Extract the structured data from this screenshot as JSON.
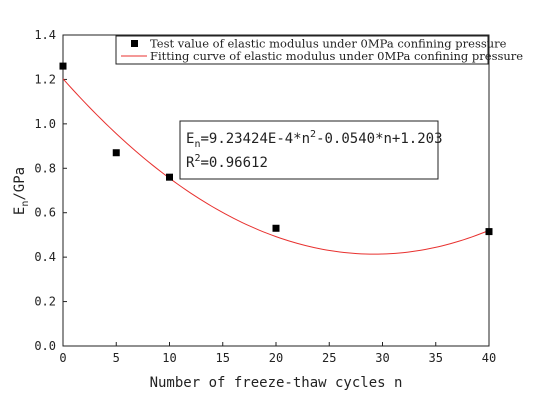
{
  "chart_data": {
    "type": "scatter",
    "xlabel": "Number of freeze-thaw cycles n",
    "ylabel_main": "E",
    "ylabel_sub": "n",
    "ylabel_rest": "/GPa",
    "xlim": [
      0,
      40
    ],
    "ylim": [
      0.0,
      1.4
    ],
    "xticks": [
      0,
      5,
      10,
      15,
      20,
      25,
      30,
      35,
      40
    ],
    "yticks": [
      "0.0",
      "0.2",
      "0.4",
      "0.6",
      "0.8",
      "1.0",
      "1.2",
      "1.4"
    ],
    "series": [
      {
        "name": "Test value of elastic modulus under 0MPa confining pressure",
        "kind": "scatter",
        "color": "#000000",
        "x": [
          0,
          5,
          10,
          20,
          40
        ],
        "y": [
          1.26,
          0.87,
          0.76,
          0.53,
          0.515
        ]
      },
      {
        "name": "Fitting curve of elastic modulus under 0MPa confining pressure",
        "kind": "line",
        "color": "#e8312f",
        "coefficients": {
          "a": 0.000923424,
          "b": -0.054,
          "c": 1.203
        }
      }
    ],
    "equation": {
      "line1_prefix": "E",
      "line1_sub": "n",
      "line1_mid": "=9.23424E-4*n",
      "line1_sup": "2",
      "line1_rest": "-0.0540*n+1.203",
      "line2_prefix": "R",
      "line2_sup": "2",
      "line2_rest": "=0.96612"
    },
    "legend_position": "top-right",
    "grid": false
  }
}
